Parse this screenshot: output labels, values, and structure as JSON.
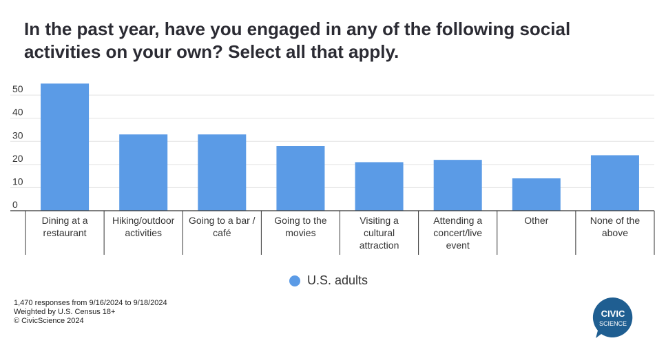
{
  "title": "In the past year, have you engaged in any of the following social activities on your own? Select all that apply.",
  "chart_data": {
    "type": "bar",
    "categories": [
      [
        "Dining at a",
        "restaurant"
      ],
      [
        "Hiking/outdoor",
        "activities"
      ],
      [
        "Going to a bar /",
        "café"
      ],
      [
        "Going to the",
        "movies"
      ],
      [
        "Visiting a",
        "cultural",
        "attraction"
      ],
      [
        "Attending a",
        "concert/live",
        "event"
      ],
      [
        "Other"
      ],
      [
        "None of the",
        "above"
      ]
    ],
    "series": [
      {
        "name": "U.S. adults",
        "values": [
          55,
          33,
          33,
          28,
          21,
          22,
          14,
          24
        ]
      }
    ],
    "yticks": [
      0,
      10,
      20,
      30,
      40,
      50
    ],
    "ylim": [
      0,
      56
    ],
    "grid": true,
    "legend_position": "bottom"
  },
  "colors": {
    "bar": "#5b9be6",
    "grid": "#e3e3e3",
    "axis": "#333333",
    "logo": "#1f5e91"
  },
  "legend": {
    "label": "U.S. adults"
  },
  "footer": {
    "line1": "1,470 responses from 9/16/2024 to 9/18/2024",
    "line2": "Weighted by U.S. Census 18+",
    "line3": "© CivicScience 2024"
  },
  "logo": {
    "line1": "CIVIC",
    "line2": "SCIENCE"
  }
}
